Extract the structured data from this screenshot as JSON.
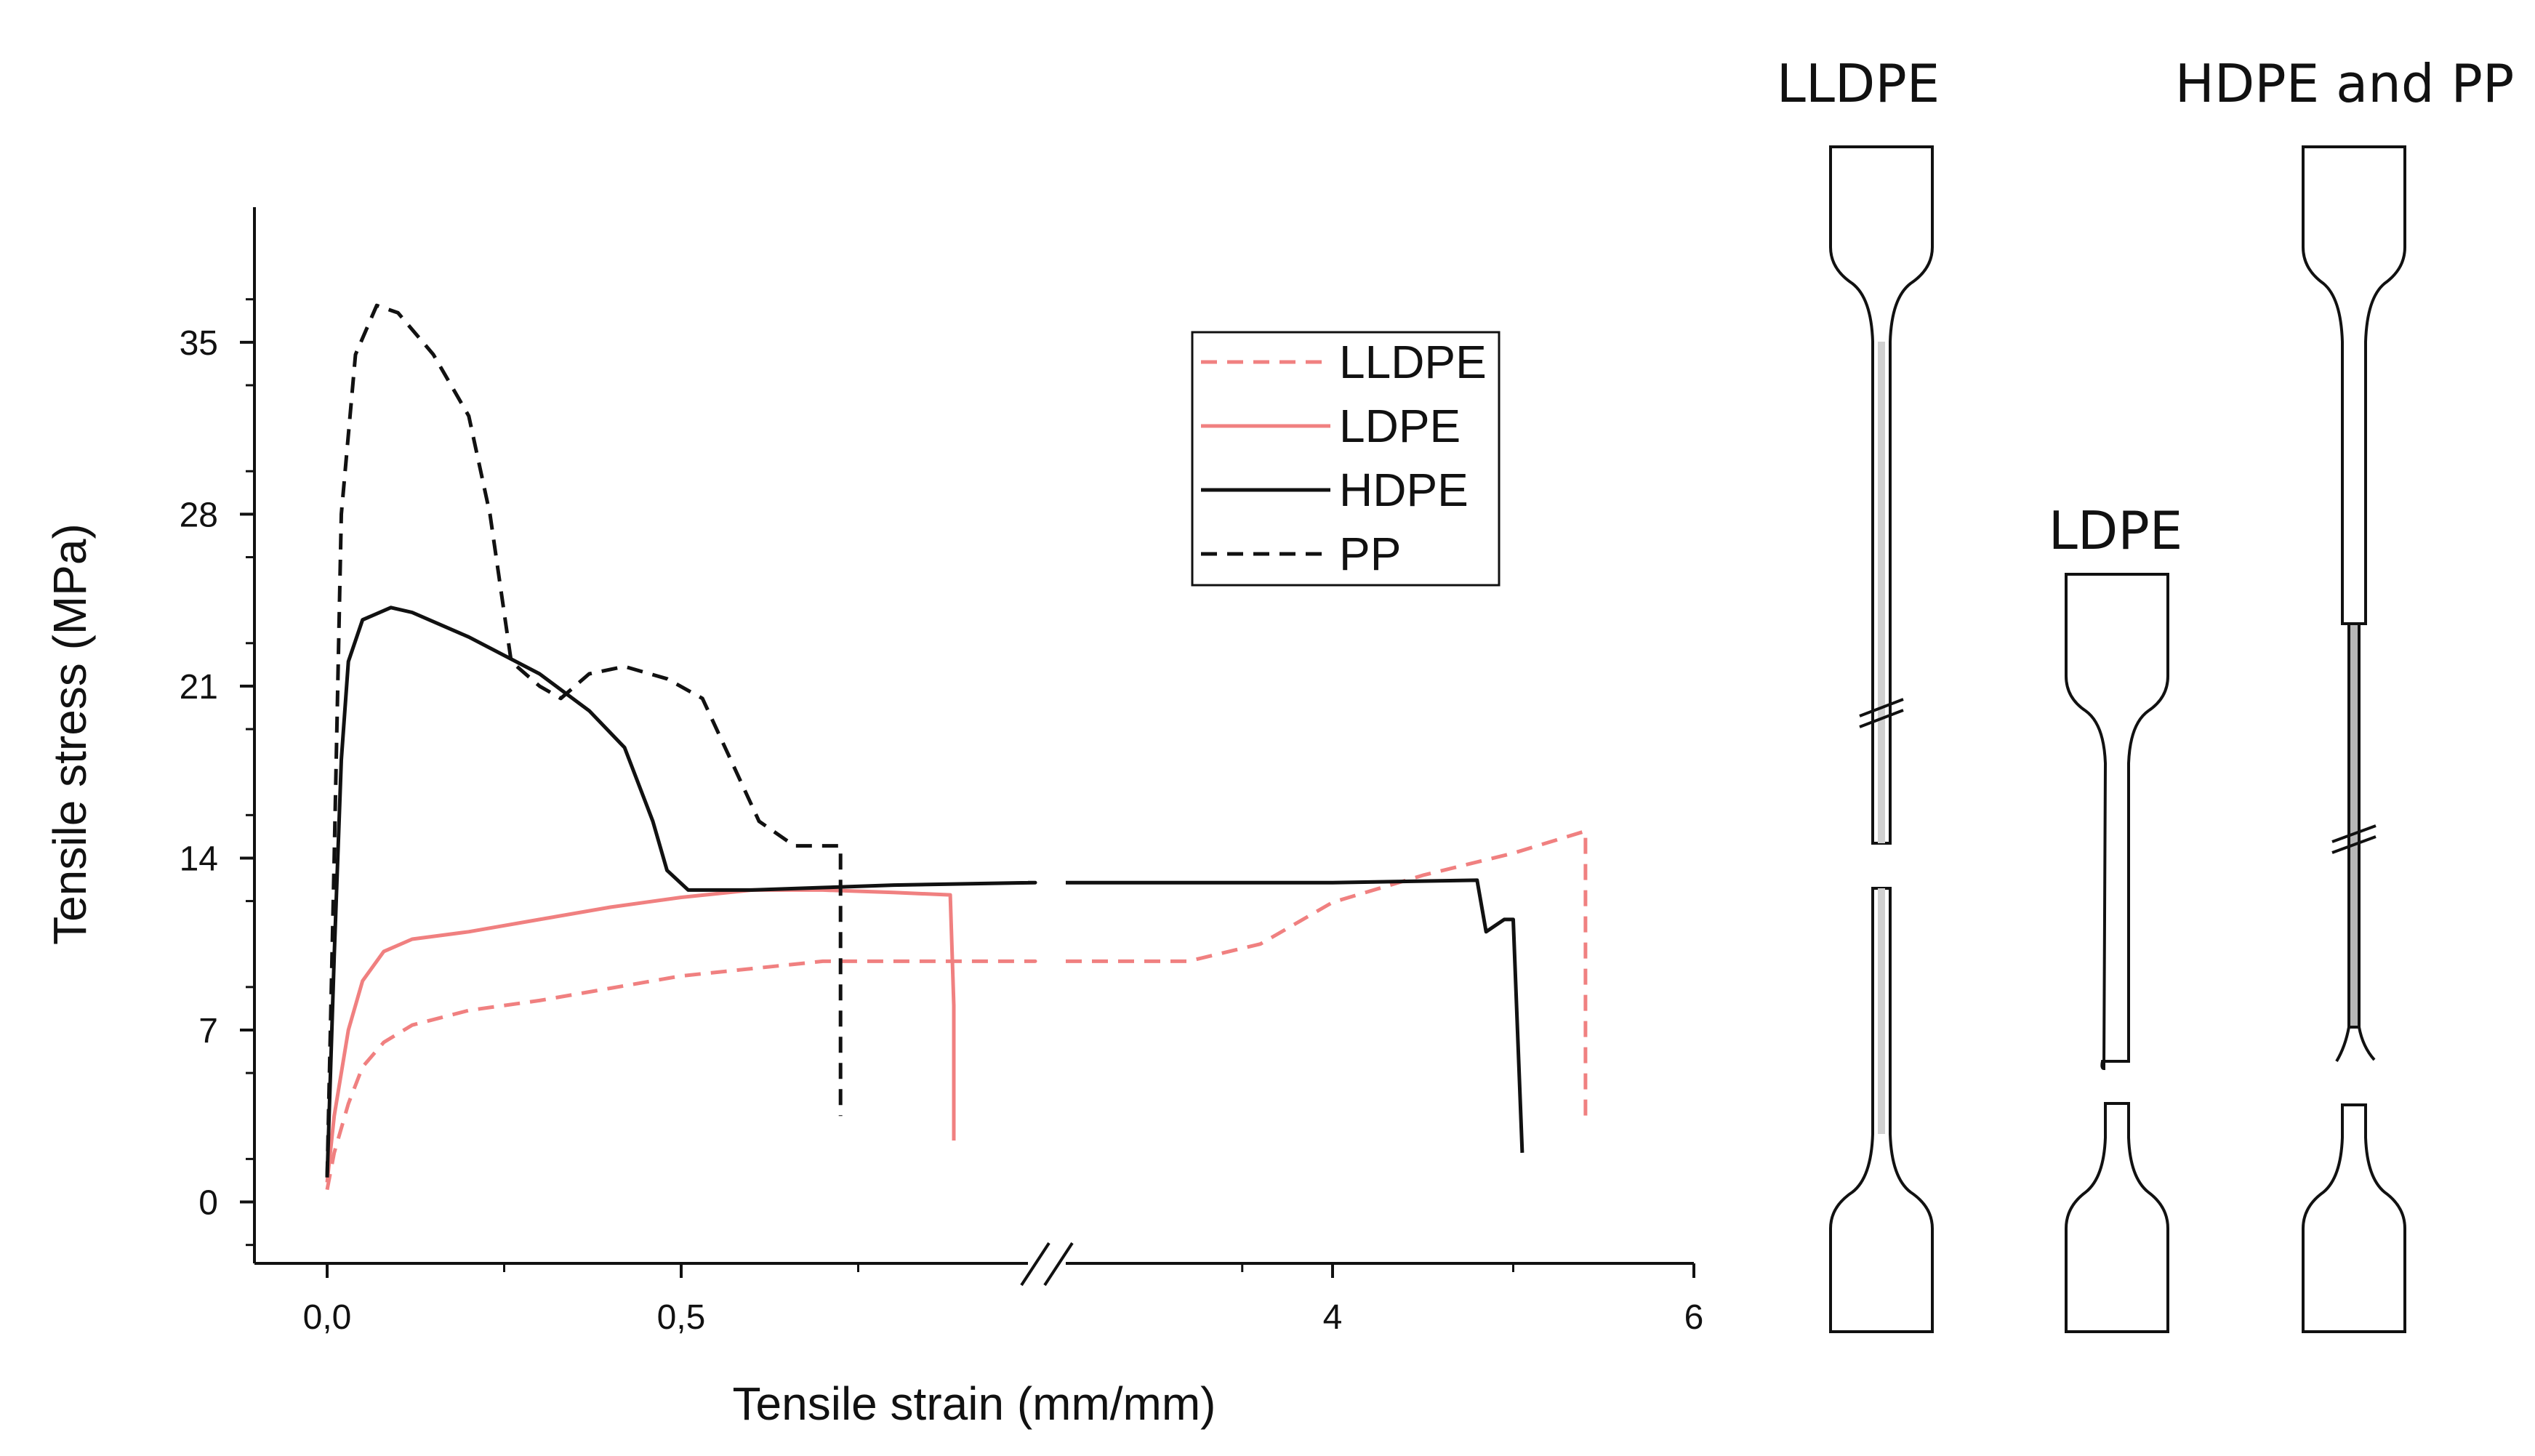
{
  "chart_data": {
    "type": "line",
    "xlabel": "Tensile strain (mm/mm)",
    "ylabel": "Tensile stress (MPa)",
    "x_axis": {
      "broken": true,
      "segment_1": {
        "range": [
          0.0,
          1.0
        ]
      },
      "segment_2": {
        "range": [
          3.0,
          6.0
        ]
      },
      "tick_labels": [
        "0,0",
        "0,5",
        "4",
        "6"
      ]
    },
    "y_axis": {
      "range": [
        -2.5,
        40.5
      ],
      "ticks": [
        0,
        7,
        14,
        21,
        28,
        35
      ],
      "tick_labels": [
        "0",
        "7",
        "14",
        "21",
        "28",
        "35"
      ]
    },
    "legend": {
      "placement": "upper-center",
      "entries": [
        "LLDPE",
        "LDPE",
        "HDPE",
        "PP"
      ]
    },
    "series": [
      {
        "name": "LLDPE",
        "color": "#f08080",
        "dash": "dashed",
        "points": [
          [
            0.0,
            0.5
          ],
          [
            0.01,
            2.0
          ],
          [
            0.03,
            4.0
          ],
          [
            0.05,
            5.5
          ],
          [
            0.08,
            6.5
          ],
          [
            0.12,
            7.2
          ],
          [
            0.2,
            7.8
          ],
          [
            0.3,
            8.2
          ],
          [
            0.4,
            8.7
          ],
          [
            0.5,
            9.2
          ],
          [
            0.6,
            9.5
          ],
          [
            0.7,
            9.8
          ],
          [
            0.8,
            9.8
          ],
          [
            0.9,
            9.8
          ],
          [
            1.0,
            9.8
          ],
          [
            3.2,
            9.8
          ],
          [
            3.6,
            10.5
          ],
          [
            4.0,
            12.2
          ],
          [
            4.5,
            13.3
          ],
          [
            5.0,
            14.2
          ],
          [
            5.4,
            15.1
          ],
          [
            5.4,
            3.5
          ]
        ]
      },
      {
        "name": "LDPE",
        "color": "#f08080",
        "dash": "solid",
        "points": [
          [
            0.0,
            0.8
          ],
          [
            0.01,
            3.5
          ],
          [
            0.03,
            7.0
          ],
          [
            0.05,
            9.0
          ],
          [
            0.08,
            10.2
          ],
          [
            0.12,
            10.7
          ],
          [
            0.2,
            11.0
          ],
          [
            0.3,
            11.5
          ],
          [
            0.4,
            12.0
          ],
          [
            0.5,
            12.4
          ],
          [
            0.6,
            12.7
          ],
          [
            0.7,
            12.7
          ],
          [
            0.8,
            12.6
          ],
          [
            0.88,
            12.5
          ],
          [
            0.885,
            8.0
          ],
          [
            0.885,
            2.5
          ]
        ]
      },
      {
        "name": "HDPE",
        "color": "#111111",
        "dash": "solid",
        "points": [
          [
            0.0,
            1.0
          ],
          [
            0.01,
            10.0
          ],
          [
            0.02,
            18.0
          ],
          [
            0.03,
            22.0
          ],
          [
            0.05,
            23.7
          ],
          [
            0.09,
            24.2
          ],
          [
            0.12,
            24.0
          ],
          [
            0.2,
            23.0
          ],
          [
            0.3,
            21.5
          ],
          [
            0.37,
            20.0
          ],
          [
            0.42,
            18.5
          ],
          [
            0.46,
            15.5
          ],
          [
            0.48,
            13.5
          ],
          [
            0.51,
            12.7
          ],
          [
            0.6,
            12.7
          ],
          [
            0.7,
            12.8
          ],
          [
            0.8,
            12.9
          ],
          [
            1.0,
            13.0
          ],
          [
            3.0,
            13.0
          ],
          [
            4.0,
            13.0
          ],
          [
            4.8,
            13.1
          ],
          [
            4.85,
            11.0
          ],
          [
            4.95,
            11.5
          ],
          [
            5.0,
            11.5
          ],
          [
            5.05,
            2.0
          ]
        ]
      },
      {
        "name": "PP",
        "color": "#111111",
        "dash": "dashed",
        "points": [
          [
            0.0,
            1.0
          ],
          [
            0.01,
            14.0
          ],
          [
            0.02,
            28.0
          ],
          [
            0.04,
            34.5
          ],
          [
            0.07,
            36.5
          ],
          [
            0.1,
            36.2
          ],
          [
            0.15,
            34.5
          ],
          [
            0.2,
            32.0
          ],
          [
            0.23,
            28.0
          ],
          [
            0.26,
            22.0
          ],
          [
            0.3,
            21.0
          ],
          [
            0.33,
            20.5
          ],
          [
            0.37,
            21.5
          ],
          [
            0.42,
            21.8
          ],
          [
            0.48,
            21.3
          ],
          [
            0.53,
            20.5
          ],
          [
            0.57,
            18.0
          ],
          [
            0.61,
            15.5
          ],
          [
            0.66,
            14.5
          ],
          [
            0.725,
            14.5
          ],
          [
            0.725,
            3.5
          ]
        ]
      }
    ]
  },
  "specimen_labels": {
    "lldpe": "LLDPE",
    "ldpe": "LDPE",
    "hdpe_pp": "HDPE and PP"
  }
}
